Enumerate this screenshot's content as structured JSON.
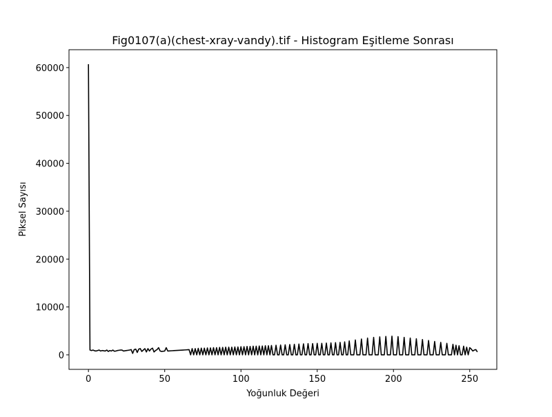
{
  "chart_data": {
    "type": "line",
    "title": "Fig0107(a)(chest-xray-vandy).tif - Histogram Eşitleme Sonrası",
    "x_label": "Yoğunluk Değeri",
    "y_label": "Piksel Sayısı",
    "x": [
      0,
      1,
      2,
      3,
      4,
      5,
      6,
      7,
      8,
      9,
      10,
      11,
      12,
      13,
      14,
      15,
      16,
      17,
      18,
      19,
      20,
      21,
      22,
      23,
      24,
      25,
      26,
      27,
      28,
      29,
      30,
      31,
      32,
      33,
      34,
      35,
      36,
      37,
      38,
      39,
      40,
      41,
      42,
      43,
      44,
      45,
      46,
      47,
      48,
      49,
      50,
      51,
      52,
      53,
      54,
      55,
      56,
      57,
      58,
      59,
      60,
      61,
      62,
      63,
      64,
      65,
      66,
      67,
      68,
      69,
      70,
      71,
      72,
      73,
      74,
      75,
      76,
      77,
      78,
      79,
      80,
      81,
      82,
      83,
      84,
      85,
      86,
      87,
      88,
      89,
      90,
      91,
      92,
      93,
      94,
      95,
      96,
      97,
      98,
      99,
      100,
      101,
      102,
      103,
      104,
      105,
      106,
      107,
      108,
      109,
      110,
      111,
      112,
      113,
      114,
      115,
      116,
      117,
      118,
      119,
      120,
      121,
      122,
      123,
      124,
      125,
      126,
      127,
      128,
      129,
      130,
      131,
      132,
      133,
      134,
      135,
      136,
      137,
      138,
      139,
      140,
      141,
      142,
      143,
      144,
      145,
      146,
      147,
      148,
      149,
      150,
      151,
      152,
      153,
      154,
      155,
      156,
      157,
      158,
      159,
      160,
      161,
      162,
      163,
      164,
      165,
      166,
      167,
      168,
      169,
      170,
      171,
      172,
      173,
      174,
      175,
      176,
      177,
      178,
      179,
      180,
      181,
      182,
      183,
      184,
      185,
      186,
      187,
      188,
      189,
      190,
      191,
      192,
      193,
      194,
      195,
      196,
      197,
      198,
      199,
      200,
      201,
      202,
      203,
      204,
      205,
      206,
      207,
      208,
      209,
      210,
      211,
      212,
      213,
      214,
      215,
      216,
      217,
      218,
      219,
      220,
      221,
      222,
      223,
      224,
      225,
      226,
      227,
      228,
      229,
      230,
      231,
      232,
      233,
      234,
      235,
      236,
      237,
      238,
      239,
      240,
      241,
      242,
      243,
      244,
      245,
      246,
      247,
      248,
      249,
      250,
      251,
      252,
      253,
      254,
      255
    ],
    "series": [
      {
        "color": "#000000",
        "values": [
          60700,
          1000,
          900,
          1000,
          850,
          800,
          900,
          1000,
          800,
          900,
          850,
          800,
          1000,
          700,
          900,
          800,
          1000,
          750,
          800,
          900,
          950,
          1000,
          1000,
          800,
          850,
          900,
          950,
          1000,
          1100,
          300,
          1100,
          1200,
          500,
          1200,
          1300,
          700,
          1000,
          1300,
          600,
          1300,
          800,
          1200,
          1400,
          600,
          900,
          1100,
          1500,
          800,
          700,
          750,
          800,
          1500,
          800,
          820,
          840,
          860,
          880,
          900,
          920,
          940,
          960,
          980,
          1000,
          1020,
          1040,
          1060,
          1080,
          0,
          1300,
          0,
          1300,
          0,
          1350,
          0,
          1400,
          0,
          1400,
          0,
          1450,
          0,
          1450,
          0,
          1500,
          0,
          1500,
          0,
          1550,
          0,
          1550,
          0,
          1600,
          0,
          1600,
          0,
          1600,
          0,
          1650,
          0,
          1650,
          0,
          1700,
          0,
          1700,
          0,
          1750,
          0,
          1750,
          0,
          1800,
          0,
          1800,
          0,
          1850,
          0,
          1850,
          0,
          1900,
          0,
          1900,
          0,
          1950,
          0,
          0,
          2000,
          0,
          0,
          2050,
          0,
          0,
          2100,
          0,
          0,
          2150,
          0,
          0,
          2200,
          0,
          0,
          2250,
          0,
          0,
          2300,
          0,
          0,
          2350,
          0,
          0,
          2350,
          0,
          0,
          2400,
          0,
          0,
          2400,
          0,
          0,
          2450,
          0,
          0,
          2500,
          0,
          0,
          2550,
          0,
          0,
          2600,
          0,
          0,
          2700,
          0,
          0,
          2900,
          0,
          0,
          0,
          3100,
          0,
          0,
          0,
          3300,
          0,
          0,
          0,
          3500,
          0,
          0,
          0,
          3650,
          0,
          0,
          0,
          3750,
          0,
          0,
          0,
          3850,
          0,
          0,
          0,
          3900,
          0,
          0,
          0,
          3800,
          0,
          0,
          0,
          3650,
          0,
          0,
          0,
          3500,
          0,
          0,
          0,
          3350,
          0,
          0,
          0,
          3200,
          0,
          0,
          0,
          3000,
          0,
          0,
          0,
          2800,
          0,
          0,
          0,
          2600,
          0,
          0,
          0,
          2400,
          0,
          0,
          0,
          2200,
          0,
          2000,
          0,
          1900,
          0,
          0,
          1800,
          0,
          1600,
          0,
          1500,
          1200,
          800,
          1000,
          1100,
          600
        ]
      }
    ],
    "xlim": [
      -12.75,
      267.75
    ],
    "ylim": [
      -3035,
      63735
    ],
    "xticks": [
      0,
      50,
      100,
      150,
      200,
      250
    ],
    "yticks": [
      0,
      10000,
      20000,
      30000,
      40000,
      50000,
      60000
    ]
  }
}
